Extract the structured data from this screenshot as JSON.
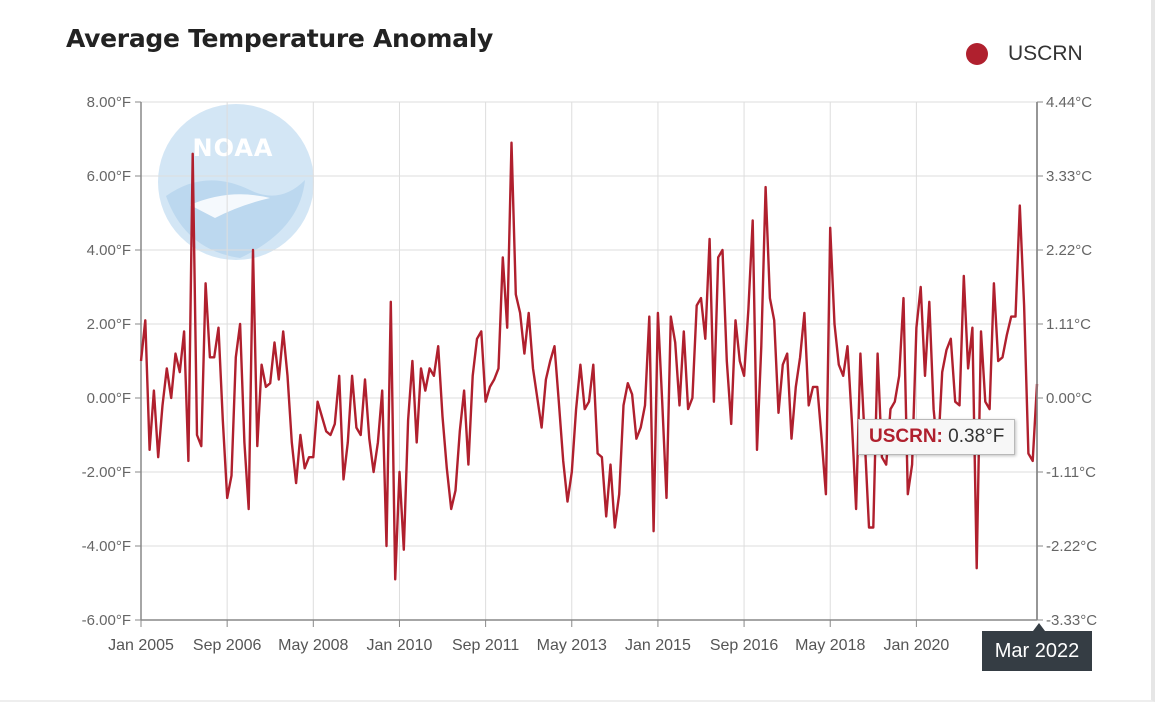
{
  "title": "Average Temperature Anomaly",
  "watermark_text": "NOAA",
  "legend": {
    "label": "USCRN",
    "color": "#b0202e"
  },
  "tooltip": {
    "name": "USCRN:",
    "value": "0.38°F"
  },
  "x_flag": "Mar 2022",
  "colors": {
    "series": "#b0202e",
    "grid": "#dddddd",
    "axis": "#888888",
    "watermark": "#cfe4f4"
  },
  "chart_data": {
    "type": "line",
    "title": "Average Temperature Anomaly",
    "xlabel": "",
    "ylabel": "",
    "x_range": [
      "2005-01",
      "2022-03"
    ],
    "ylim": [
      -6,
      8
    ],
    "y_ticks": [
      8,
      6,
      4,
      2,
      0,
      -2,
      -4,
      -6
    ],
    "y_tick_labels": [
      "8.00°F",
      "6.00°F",
      "4.00°F",
      "2.00°F",
      "0.00°F",
      "-2.00°F",
      "-4.00°F",
      "-6.00°F"
    ],
    "y2_tick_labels": [
      "4.44°C",
      "3.33°C",
      "2.22°C",
      "1.11°C",
      "0.00°C",
      "-1.11°C",
      "-2.22°C",
      "-3.33°C"
    ],
    "x_tick_labels": [
      "Jan 2005",
      "Sep 2006",
      "May 2008",
      "Jan 2010",
      "Sep 2011",
      "May 2013",
      "Jan 2015",
      "Sep 2016",
      "May 2018",
      "Jan 2020"
    ],
    "grid": true,
    "legend_position": "top-right",
    "series": [
      {
        "name": "USCRN",
        "values": [
          1.0,
          2.1,
          -1.4,
          0.2,
          -1.6,
          -0.2,
          0.8,
          0.0,
          1.2,
          0.7,
          1.8,
          -1.7,
          6.6,
          -1.0,
          -1.3,
          3.1,
          1.1,
          1.1,
          1.9,
          -0.6,
          -2.7,
          -2.1,
          1.1,
          2.0,
          -1.2,
          -3.0,
          4.0,
          -1.3,
          0.9,
          0.3,
          0.4,
          1.5,
          0.5,
          1.8,
          0.6,
          -1.2,
          -2.3,
          -1.0,
          -1.9,
          -1.6,
          -1.6,
          -0.1,
          -0.5,
          -0.9,
          -1.0,
          -0.7,
          0.6,
          -2.2,
          -1.2,
          0.6,
          -0.8,
          -1.0,
          0.5,
          -1.1,
          -2.0,
          -1.2,
          0.2,
          -4.0,
          2.6,
          -4.9,
          -2.0,
          -4.1,
          -0.6,
          1.0,
          -1.2,
          0.8,
          0.2,
          0.8,
          0.6,
          1.4,
          -0.5,
          -1.9,
          -3.0,
          -2.5,
          -0.9,
          0.2,
          -1.8,
          0.6,
          1.6,
          1.8,
          -0.1,
          0.3,
          0.5,
          0.8,
          3.8,
          1.9,
          6.9,
          2.8,
          2.3,
          1.2,
          2.3,
          0.8,
          0.0,
          -0.8,
          0.5,
          1.0,
          1.4,
          -0.1,
          -1.7,
          -2.8,
          -2.0,
          -0.3,
          0.9,
          -0.3,
          -0.1,
          0.9,
          -1.5,
          -1.6,
          -3.2,
          -1.8,
          -3.5,
          -2.6,
          -0.2,
          0.4,
          0.1,
          -1.1,
          -0.8,
          -0.2,
          2.2,
          -3.6,
          2.3,
          -0.1,
          -2.7,
          2.2,
          1.5,
          -0.2,
          1.8,
          -0.3,
          0.0,
          2.5,
          2.7,
          1.6,
          4.3,
          -0.1,
          3.8,
          4.0,
          1.0,
          -0.7,
          2.1,
          1.0,
          0.6,
          2.4,
          4.8,
          -1.4,
          1.4,
          5.7,
          2.7,
          2.1,
          -0.4,
          0.9,
          1.2,
          -1.1,
          0.3,
          1.1,
          2.3,
          -0.2,
          0.3,
          0.3,
          -1.1,
          -2.6,
          4.6,
          2.0,
          0.9,
          0.6,
          1.4,
          -0.6,
          -3.0,
          1.2,
          -1.1,
          -3.5,
          -3.5,
          1.2,
          -1.6,
          -1.8,
          -0.3,
          -0.1,
          0.6,
          2.7,
          -2.6,
          -1.8,
          1.9,
          3.0,
          0.6,
          2.6,
          -0.3,
          -1.5,
          0.7,
          1.3,
          1.6,
          -0.1,
          -0.2,
          3.3,
          0.8,
          1.9,
          -4.6,
          1.8,
          -0.1,
          -0.3,
          3.1,
          1.0,
          1.1,
          1.7,
          2.2,
          2.2,
          5.2,
          2.5,
          -1.5,
          -1.7,
          0.38
        ]
      }
    ]
  }
}
